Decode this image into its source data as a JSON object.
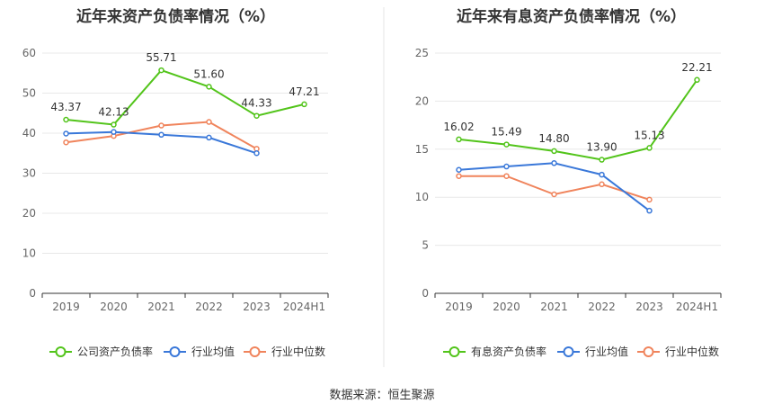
{
  "source_label": "数据来源：恒生聚源",
  "chart_data": [
    {
      "type": "line",
      "title": "近年来资产负债率情况（%）",
      "categories": [
        "2019",
        "2020",
        "2021",
        "2022",
        "2023",
        "2024H1"
      ],
      "ylim": [
        0,
        60
      ],
      "yticks": [
        0,
        10,
        20,
        30,
        40,
        50,
        60
      ],
      "grid": true,
      "legend_position": "bottom",
      "series": [
        {
          "name": "公司资产负债率",
          "color": "#52c41a",
          "values": [
            43.37,
            42.13,
            55.71,
            51.6,
            44.33,
            47.21
          ],
          "labels": [
            "43.37",
            "42.13",
            "55.71",
            "51.60",
            "44.33",
            "47.21"
          ]
        },
        {
          "name": "行业均值",
          "color": "#3a78d9",
          "values": [
            39.9,
            40.3,
            39.6,
            38.9,
            35.0,
            null
          ],
          "labels": null
        },
        {
          "name": "行业中位数",
          "color": "#f0845c",
          "values": [
            37.7,
            39.3,
            41.9,
            42.8,
            36.1,
            null
          ],
          "labels": null
        }
      ]
    },
    {
      "type": "line",
      "title": "近年来有息资产负债率情况（%）",
      "categories": [
        "2019",
        "2020",
        "2021",
        "2022",
        "2023",
        "2024H1"
      ],
      "ylim": [
        0,
        25
      ],
      "yticks": [
        0,
        5,
        10,
        15,
        20,
        25
      ],
      "grid": true,
      "legend_position": "bottom",
      "series": [
        {
          "name": "有息资产负债率",
          "color": "#52c41a",
          "values": [
            16.02,
            15.49,
            14.8,
            13.9,
            15.13,
            22.21
          ],
          "labels": [
            "16.02",
            "15.49",
            "14.80",
            "13.90",
            "15.13",
            "22.21"
          ]
        },
        {
          "name": "行业均值",
          "color": "#3a78d9",
          "values": [
            12.85,
            13.2,
            13.55,
            12.35,
            8.6,
            null
          ],
          "labels": null
        },
        {
          "name": "行业中位数",
          "color": "#f0845c",
          "values": [
            12.2,
            12.2,
            10.3,
            11.35,
            9.75,
            null
          ],
          "labels": null
        }
      ]
    }
  ]
}
